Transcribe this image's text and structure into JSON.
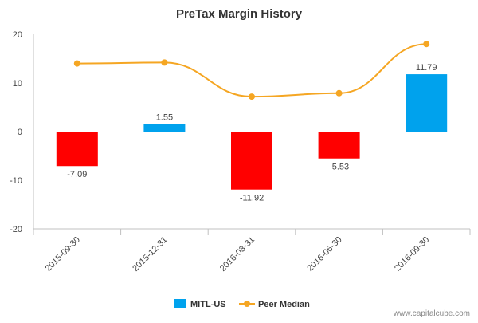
{
  "chart_data": {
    "type": "bar",
    "title": "PreTax Margin History",
    "categories": [
      "2015-09-30",
      "2015-12-31",
      "2016-03-31",
      "2016-06-30",
      "2016-09-30"
    ],
    "series": [
      {
        "name": "MITL-US",
        "type": "bar",
        "values": [
          -7.09,
          1.55,
          -11.92,
          -5.53,
          11.79
        ],
        "data_labels": [
          "-7.09",
          "1.55",
          "-11.92",
          "-5.53",
          "11.79"
        ],
        "positive_color": "#00a2ed",
        "negative_color": "#ff0000"
      },
      {
        "name": "Peer Median",
        "type": "line",
        "values": [
          14.0,
          14.2,
          7.2,
          7.9,
          18.0
        ],
        "color": "#f5a623"
      }
    ],
    "ylim": [
      -20,
      20
    ],
    "yticks": [
      -20,
      -10,
      0,
      10,
      20
    ],
    "grid": false,
    "legend_position": "bottom-center"
  },
  "legend": {
    "items": [
      {
        "label": "MITL-US",
        "color": "#00a2ed"
      },
      {
        "label": "Peer Median",
        "color": "#f5a623"
      }
    ]
  },
  "watermark": "www.capitalcube.com"
}
